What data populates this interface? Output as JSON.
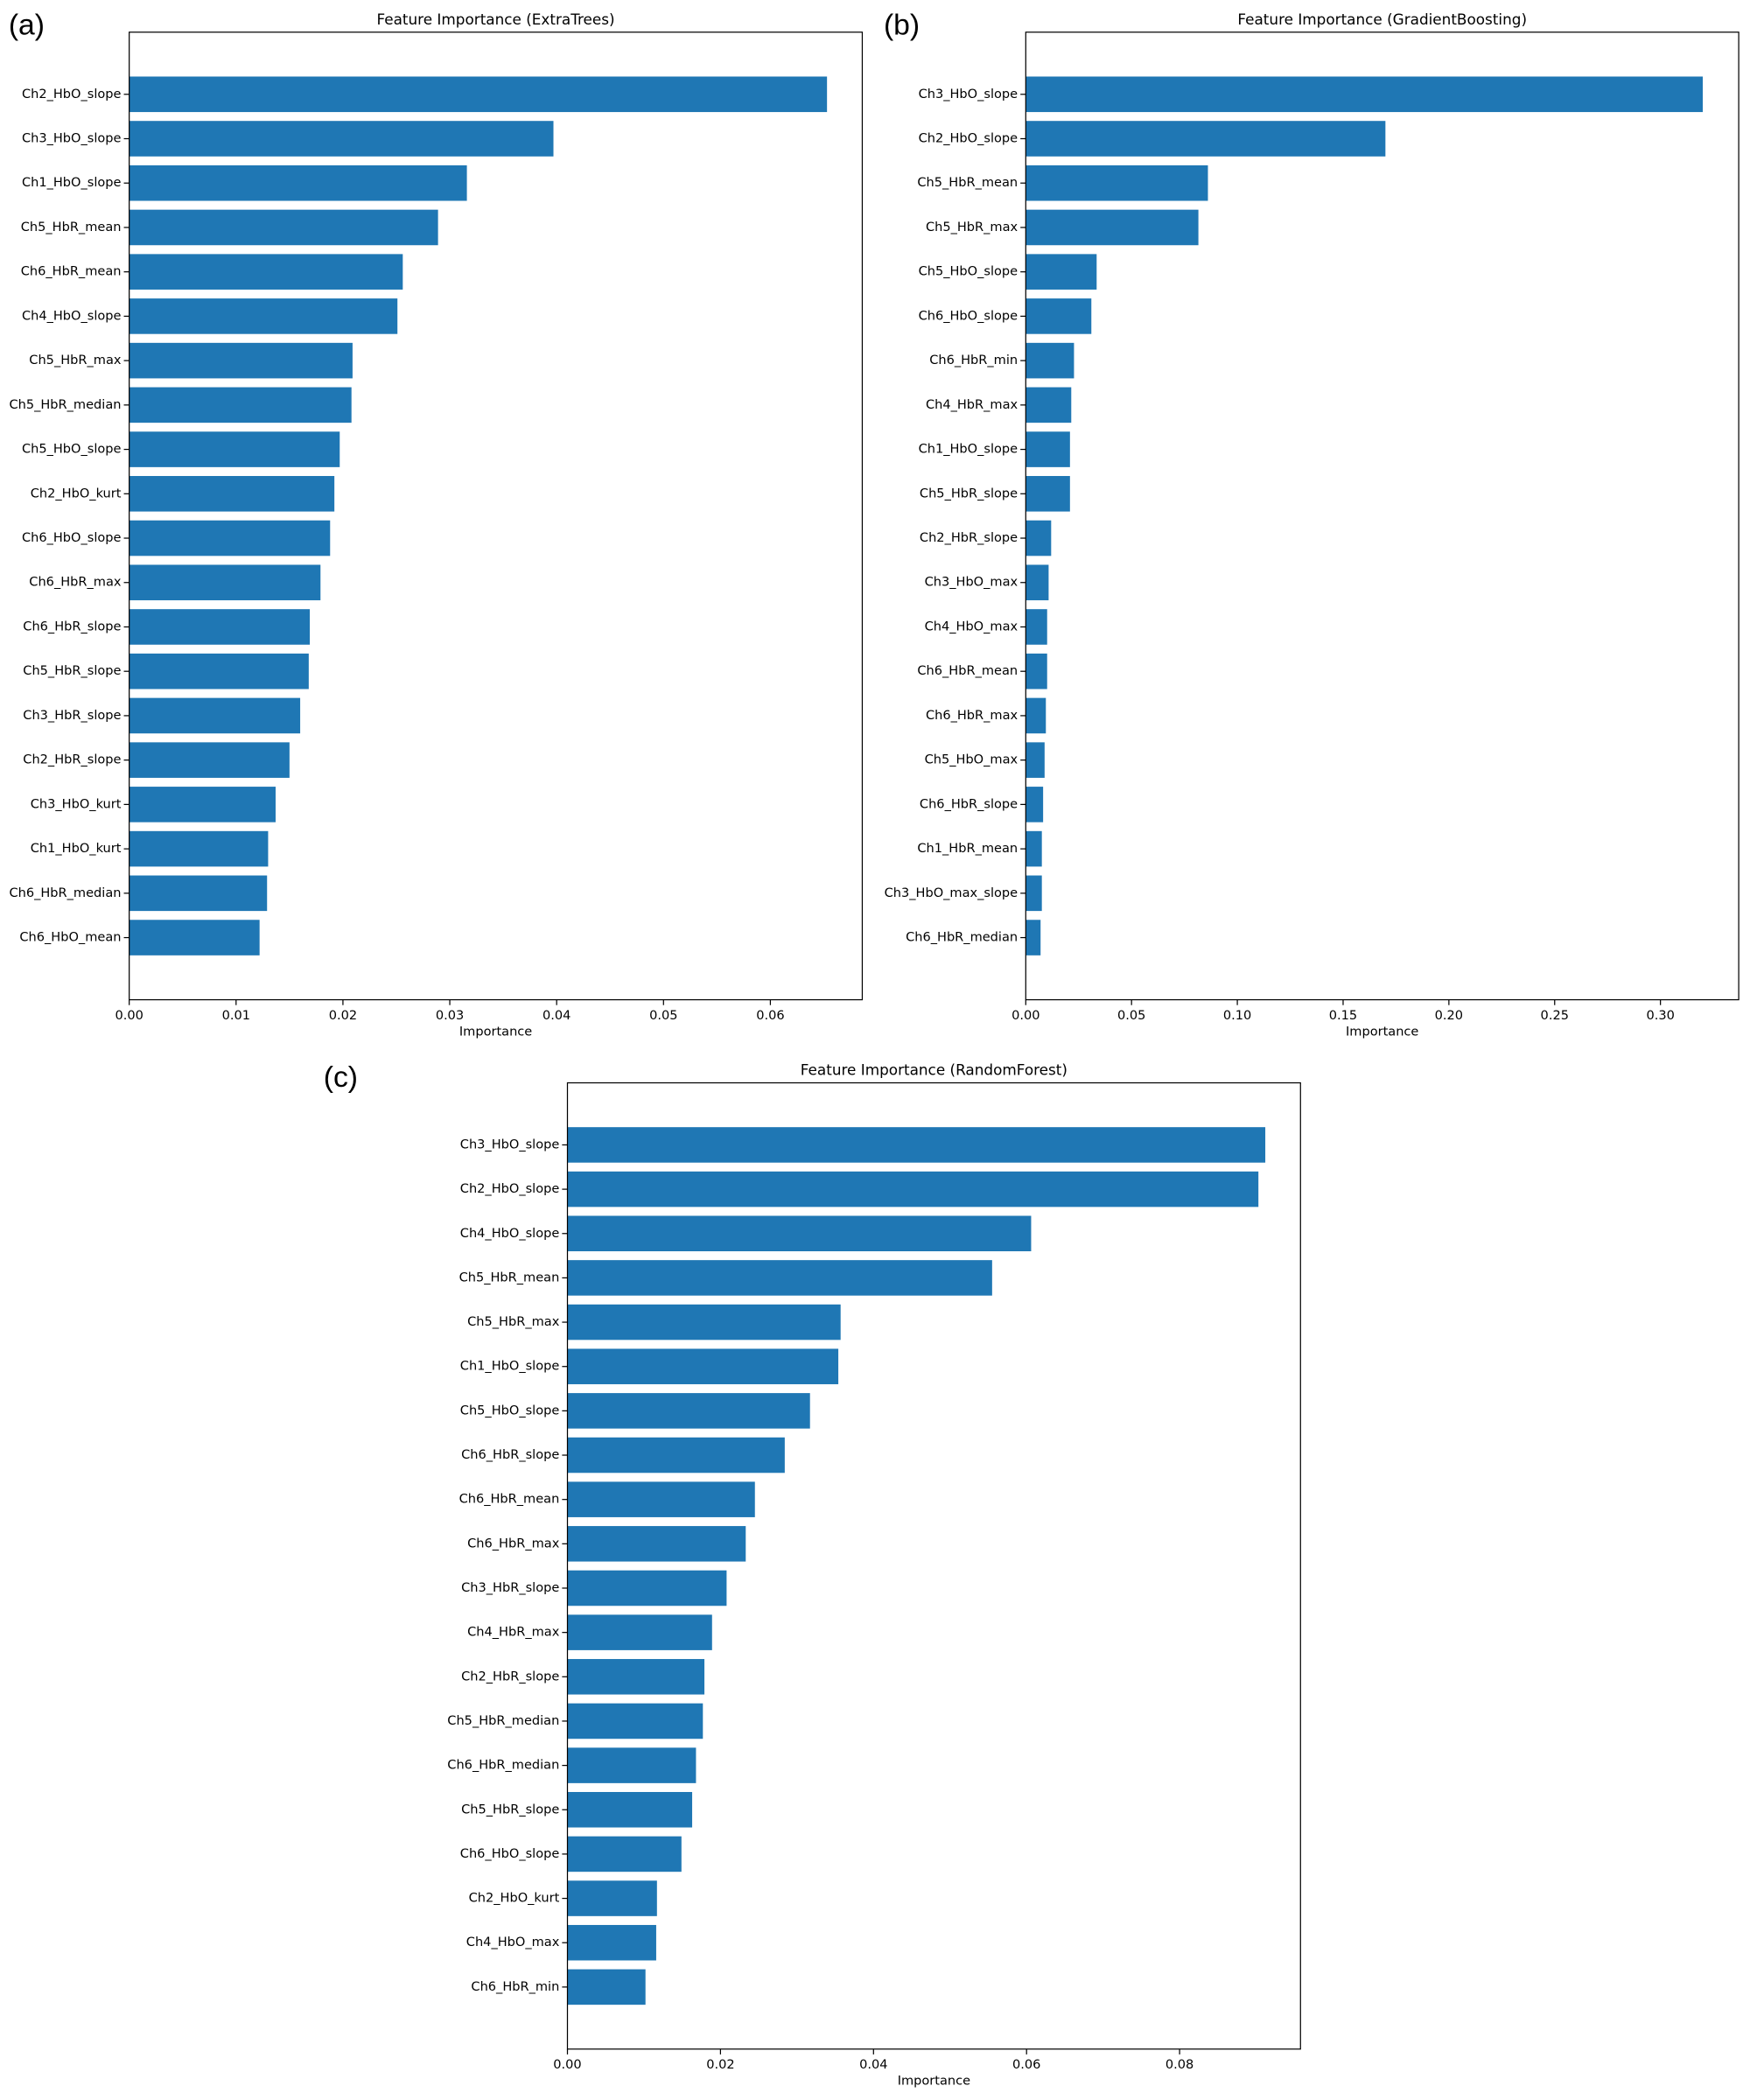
{
  "chart_data": [
    {
      "type": "barh",
      "panel_label": "(a)",
      "title": "Feature Importance (ExtraTrees)",
      "x_label": "Importance",
      "color": "#1f77b4",
      "categories": [
        "Ch2_HbO_slope",
        "Ch3_HbO_slope",
        "Ch1_HbO_slope",
        "Ch5_HbR_mean",
        "Ch6_HbR_mean",
        "Ch4_HbO_slope",
        "Ch5_HbR_max",
        "Ch5_HbR_median",
        "Ch5_HbO_slope",
        "Ch2_HbO_kurt",
        "Ch6_HbO_slope",
        "Ch6_HbR_max",
        "Ch6_HbR_slope",
        "Ch5_HbR_slope",
        "Ch3_HbR_slope",
        "Ch2_HbR_slope",
        "Ch3_HbO_kurt",
        "Ch1_HbO_kurt",
        "Ch6_HbR_median",
        "Ch6_HbO_mean"
      ],
      "values": [
        0.0653,
        0.0397,
        0.0316,
        0.0289,
        0.0256,
        0.0251,
        0.0209,
        0.0208,
        0.0197,
        0.0192,
        0.0188,
        0.0179,
        0.0169,
        0.0168,
        0.016,
        0.015,
        0.0137,
        0.013,
        0.0129,
        0.0122
      ],
      "xlim": [
        0,
        0.0686
      ],
      "xticks": [
        {
          "value": 0,
          "label": "0.00"
        },
        {
          "value": 0.01,
          "label": "0.01"
        },
        {
          "value": 0.02,
          "label": "0.02"
        },
        {
          "value": 0.03,
          "label": "0.03"
        },
        {
          "value": 0.04,
          "label": "0.04"
        },
        {
          "value": 0.05,
          "label": "0.05"
        },
        {
          "value": 0.06,
          "label": "0.06"
        }
      ]
    },
    {
      "type": "barh",
      "panel_label": "(b)",
      "title": "Feature Importance (GradientBoosting)",
      "x_label": "Importance",
      "color": "#1f77b4",
      "categories": [
        "Ch3_HbO_slope",
        "Ch2_HbO_slope",
        "Ch5_HbR_mean",
        "Ch5_HbR_max",
        "Ch5_HbO_slope",
        "Ch6_HbO_slope",
        "Ch6_HbR_min",
        "Ch4_HbR_max",
        "Ch1_HbO_slope",
        "Ch5_HbR_slope",
        "Ch2_HbR_slope",
        "Ch3_HbO_max",
        "Ch4_HbO_max",
        "Ch6_HbR_mean",
        "Ch6_HbR_max",
        "Ch5_HbO_max",
        "Ch6_HbR_slope",
        "Ch1_HbR_mean",
        "Ch3_HbO_max_slope",
        "Ch6_HbR_median"
      ],
      "values": [
        0.32,
        0.17,
        0.0861,
        0.0816,
        0.0335,
        0.031,
        0.0228,
        0.0215,
        0.0209,
        0.0209,
        0.012,
        0.0108,
        0.0101,
        0.0101,
        0.0095,
        0.0089,
        0.0082,
        0.0076,
        0.0076,
        0.007
      ],
      "xlim": [
        0,
        0.337
      ],
      "xticks": [
        {
          "value": 0,
          "label": "0.00"
        },
        {
          "value": 0.05,
          "label": "0.05"
        },
        {
          "value": 0.1,
          "label": "0.10"
        },
        {
          "value": 0.15,
          "label": "0.15"
        },
        {
          "value": 0.2,
          "label": "0.20"
        },
        {
          "value": 0.25,
          "label": "0.25"
        },
        {
          "value": 0.3,
          "label": "0.30"
        }
      ]
    },
    {
      "type": "barh",
      "panel_label": "(c)",
      "title": "Feature Importance (RandomForest)",
      "x_label": "Importance",
      "color": "#1f77b4",
      "categories": [
        "Ch3_HbO_slope",
        "Ch2_HbO_slope",
        "Ch4_HbO_slope",
        "Ch5_HbR_mean",
        "Ch5_HbR_max",
        "Ch1_HbO_slope",
        "Ch5_HbO_slope",
        "Ch6_HbR_slope",
        "Ch6_HbR_mean",
        "Ch6_HbR_max",
        "Ch3_HbR_slope",
        "Ch4_HbR_max",
        "Ch2_HbR_slope",
        "Ch5_HbR_median",
        "Ch6_HbR_median",
        "Ch5_HbR_slope",
        "Ch6_HbO_slope",
        "Ch2_HbO_kurt",
        "Ch4_HbO_max",
        "Ch6_HbR_min"
      ],
      "values": [
        0.0912,
        0.0903,
        0.0606,
        0.0555,
        0.0357,
        0.0354,
        0.0317,
        0.0284,
        0.0245,
        0.0233,
        0.0208,
        0.0189,
        0.0179,
        0.0177,
        0.0168,
        0.0163,
        0.0149,
        0.0117,
        0.0116,
        0.0102
      ],
      "xlim": [
        0,
        0.0958
      ],
      "xticks": [
        {
          "value": 0,
          "label": "0.00"
        },
        {
          "value": 0.02,
          "label": "0.02"
        },
        {
          "value": 0.04,
          "label": "0.04"
        },
        {
          "value": 0.06,
          "label": "0.06"
        },
        {
          "value": 0.08,
          "label": "0.08"
        }
      ]
    }
  ]
}
